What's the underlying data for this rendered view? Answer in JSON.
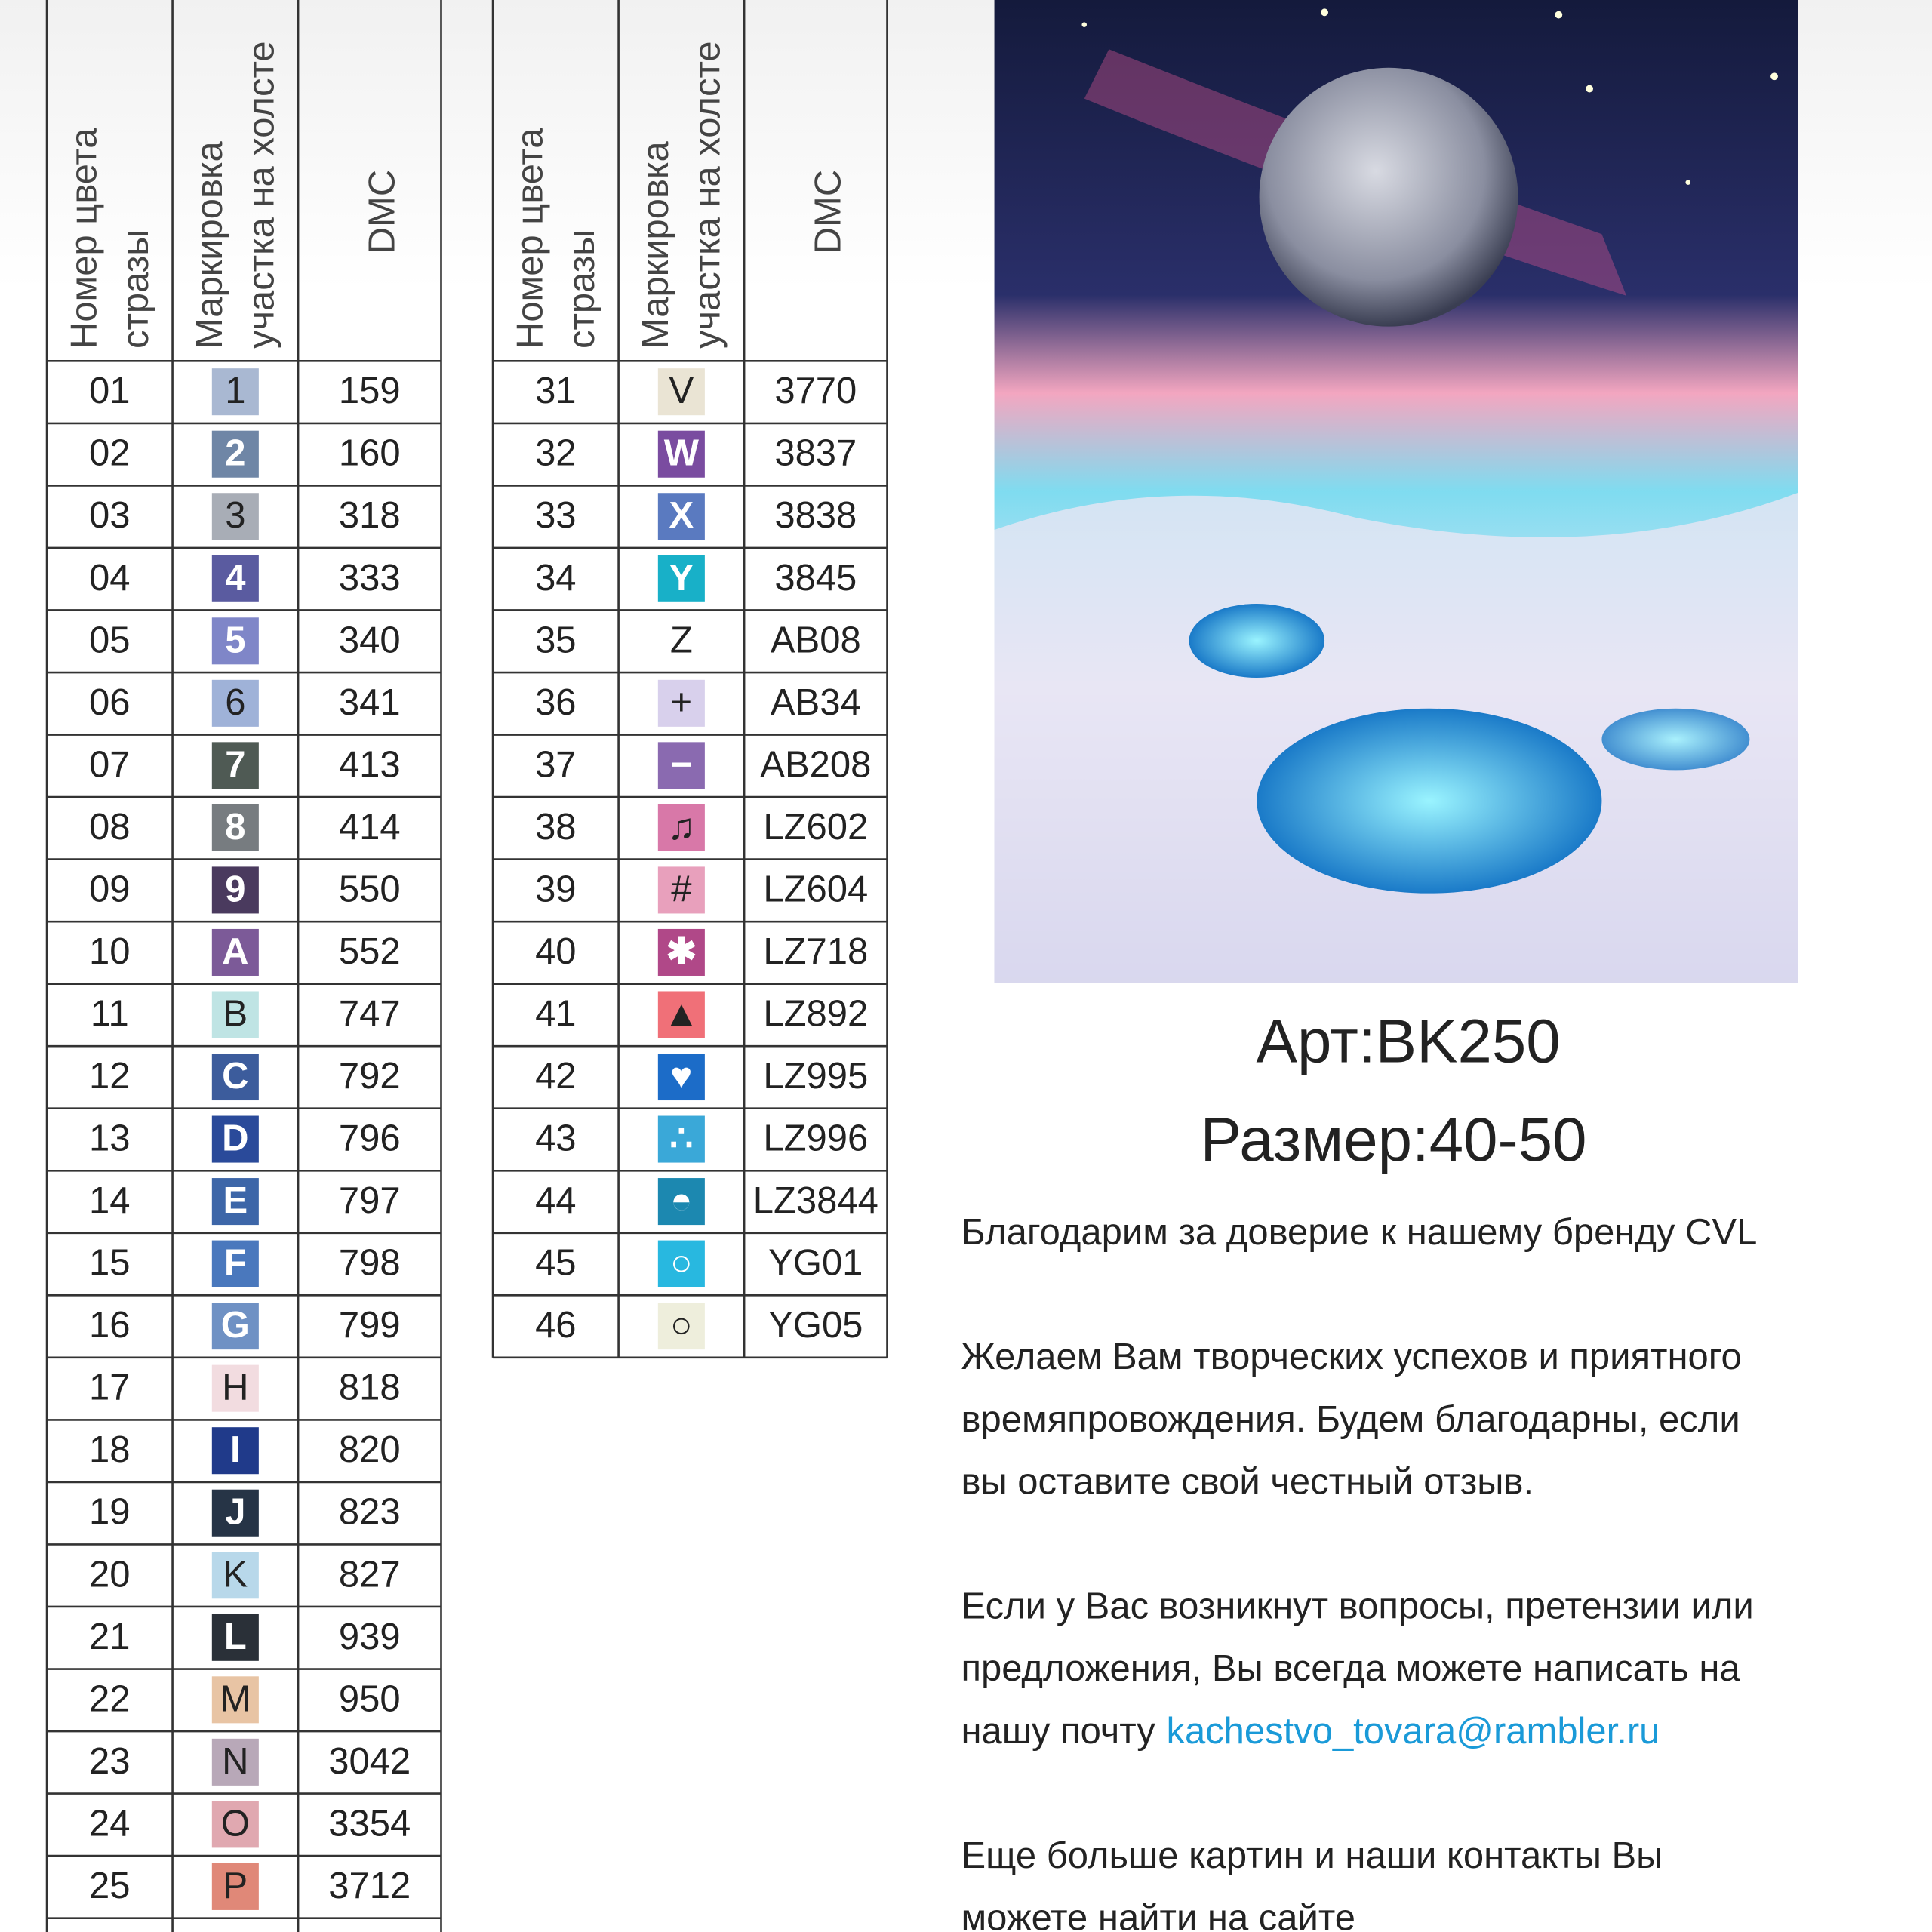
{
  "tables": [
    {
      "headers": [
        [
          "Номер цвета",
          "стразы"
        ],
        [
          "Маркировка",
          "участка на холсте"
        ],
        [
          "DMC"
        ]
      ],
      "rows": [
        {
          "number": "01",
          "symbol": "1",
          "color": "#a9b8d2",
          "dmc": "159"
        },
        {
          "number": "02",
          "symbol": "2",
          "color": "#6f86a6",
          "dmc": "160"
        },
        {
          "number": "03",
          "symbol": "3",
          "color": "#a8adb6",
          "dmc": "318"
        },
        {
          "number": "04",
          "symbol": "4",
          "color": "#5a5ba0",
          "dmc": "333"
        },
        {
          "number": "05",
          "symbol": "5",
          "color": "#7f86c8",
          "dmc": "340"
        },
        {
          "number": "06",
          "symbol": "6",
          "color": "#9fb2d8",
          "dmc": "341"
        },
        {
          "number": "07",
          "symbol": "7",
          "color": "#4f5a54",
          "dmc": "413"
        },
        {
          "number": "08",
          "symbol": "8",
          "color": "#777c80",
          "dmc": "414"
        },
        {
          "number": "09",
          "symbol": "9",
          "color": "#4a3a5e",
          "dmc": "550"
        },
        {
          "number": "10",
          "symbol": "A",
          "color": "#7c5a98",
          "dmc": "552"
        },
        {
          "number": "11",
          "symbol": "B",
          "color": "#bfe4e4",
          "dmc": "747"
        },
        {
          "number": "12",
          "symbol": "C",
          "color": "#3c5c9c",
          "dmc": "792"
        },
        {
          "number": "13",
          "symbol": "D",
          "color": "#2a4a9a",
          "dmc": "796"
        },
        {
          "number": "14",
          "symbol": "E",
          "color": "#3d66a8",
          "dmc": "797"
        },
        {
          "number": "15",
          "symbol": "F",
          "color": "#4a78bd",
          "dmc": "798"
        },
        {
          "number": "16",
          "symbol": "G",
          "color": "#6f91c4",
          "dmc": "799"
        },
        {
          "number": "17",
          "symbol": "H",
          "color": "#f2dce0",
          "dmc": "818"
        },
        {
          "number": "18",
          "symbol": "I",
          "color": "#203a8a",
          "dmc": "820"
        },
        {
          "number": "19",
          "symbol": "J",
          "color": "#263446",
          "dmc": "823"
        },
        {
          "number": "20",
          "symbol": "K",
          "color": "#b8d8ea",
          "dmc": "827"
        },
        {
          "number": "21",
          "symbol": "L",
          "color": "#2a3038",
          "dmc": "939"
        },
        {
          "number": "22",
          "symbol": "M",
          "color": "#e8c4a4",
          "dmc": "950"
        },
        {
          "number": "23",
          "symbol": "N",
          "color": "#b8a8b8",
          "dmc": "3042"
        },
        {
          "number": "24",
          "symbol": "O",
          "color": "#e0a8b0",
          "dmc": "3354"
        },
        {
          "number": "25",
          "symbol": "P",
          "color": "#e08878",
          "dmc": "3712"
        }
      ]
    },
    {
      "headers": [
        [
          "Номер цвета",
          "стразы"
        ],
        [
          "Маркировка",
          "участка на холсте"
        ],
        [
          "DMC"
        ]
      ],
      "rows": [
        {
          "number": "31",
          "symbol": "V",
          "color": "#eae4d4",
          "dmc": "3770"
        },
        {
          "number": "32",
          "symbol": "W",
          "color": "#7a4ca0",
          "dmc": "3837"
        },
        {
          "number": "33",
          "symbol": "X",
          "color": "#5a7ac0",
          "dmc": "3838"
        },
        {
          "number": "34",
          "symbol": "Y",
          "color": "#18b0c8",
          "dmc": "3845"
        },
        {
          "number": "35",
          "symbol": "Z",
          "color": "#ffffff",
          "dmc": "AB08"
        },
        {
          "number": "36",
          "symbol": "+",
          "color": "#d8d0ec",
          "dmc": "AB34"
        },
        {
          "number": "37",
          "symbol": "−",
          "color": "#8a6ab0",
          "dmc": "AB208"
        },
        {
          "number": "38",
          "symbol": "♫",
          "color": "#d878a8",
          "dmc": "LZ602"
        },
        {
          "number": "39",
          "symbol": "#",
          "color": "#e8a0bc",
          "dmc": "LZ604"
        },
        {
          "number": "40",
          "symbol": "✱",
          "color": "#b04888",
          "dmc": "LZ718"
        },
        {
          "number": "41",
          "symbol": "▲",
          "color": "#f07078",
          "dmc": "LZ892"
        },
        {
          "number": "42",
          "symbol": "♥",
          "color": "#1c6cc8",
          "dmc": "LZ995"
        },
        {
          "number": "43",
          "symbol": "∴",
          "color": "#3aa8d8",
          "dmc": "LZ996"
        },
        {
          "number": "44",
          "symbol": "◓",
          "color": "#1c88b0",
          "dmc": "LZ3844"
        },
        {
          "number": "45",
          "symbol": "○",
          "color": "#28b8e0",
          "dmc": "YG01"
        },
        {
          "number": "46",
          "symbol": "○",
          "color": "#eeeedc",
          "dmc": "YG05"
        }
      ]
    }
  ],
  "article": "Арт:BK250",
  "size": "Размер:40-50",
  "paragraphs": [
    [
      "Благодарим за доверие к нашему бренду CVL"
    ],
    [
      "Желаем Вам творческих успехов и приятного",
      "времяпровождения. Будем благодарны, если",
      "вы оставите свой честный отзыв."
    ],
    [
      "Если у Вас возникнут вопросы, претензии или",
      "предложения, Вы всегда можете написать на",
      "нашу почту"
    ],
    [
      "Еще больше картин и наши контакты Вы",
      "можете найти на сайте"
    ]
  ],
  "email": "kachestvo_tovara@rambler.ru"
}
